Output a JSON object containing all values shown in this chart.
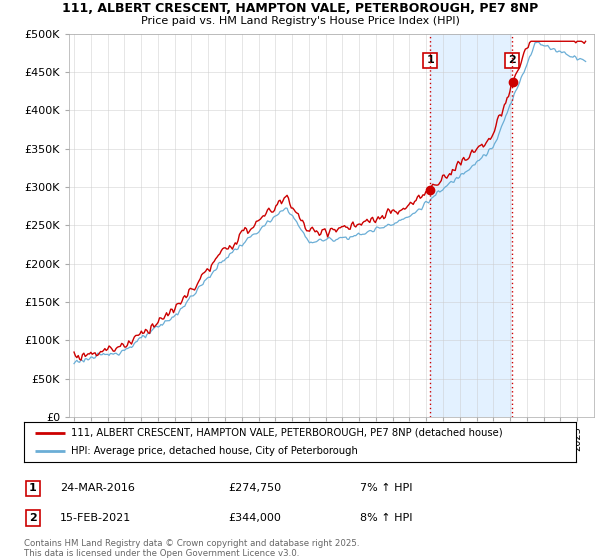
{
  "title_line1": "111, ALBERT CRESCENT, HAMPTON VALE, PETERBOROUGH, PE7 8NP",
  "title_line2": "Price paid vs. HM Land Registry's House Price Index (HPI)",
  "ylim": [
    0,
    500000
  ],
  "yticks": [
    0,
    50000,
    100000,
    150000,
    200000,
    250000,
    300000,
    350000,
    400000,
    450000,
    500000
  ],
  "ytick_labels": [
    "£0",
    "£50K",
    "£100K",
    "£150K",
    "£200K",
    "£250K",
    "£300K",
    "£350K",
    "£400K",
    "£450K",
    "£500K"
  ],
  "hpi_color": "#6baed6",
  "price_color": "#cc0000",
  "vline_color": "#cc0000",
  "shade_color": "#ddeeff",
  "marker1_x": 2016.23,
  "marker1_price": 274750,
  "marker1_label": "1",
  "marker2_x": 2021.12,
  "marker2_price": 344000,
  "marker2_label": "2",
  "legend_line1": "111, ALBERT CRESCENT, HAMPTON VALE, PETERBOROUGH, PE7 8NP (detached house)",
  "legend_line2": "HPI: Average price, detached house, City of Peterborough",
  "table_row1": [
    "1",
    "24-MAR-2016",
    "£274,750",
    "7% ↑ HPI"
  ],
  "table_row2": [
    "2",
    "15-FEB-2021",
    "£344,000",
    "8% ↑ HPI"
  ],
  "footnote": "Contains HM Land Registry data © Crown copyright and database right 2025.\nThis data is licensed under the Open Government Licence v3.0.",
  "background_color": "#ffffff",
  "grid_color": "#cccccc",
  "chart_bg": "#f0f4f8"
}
